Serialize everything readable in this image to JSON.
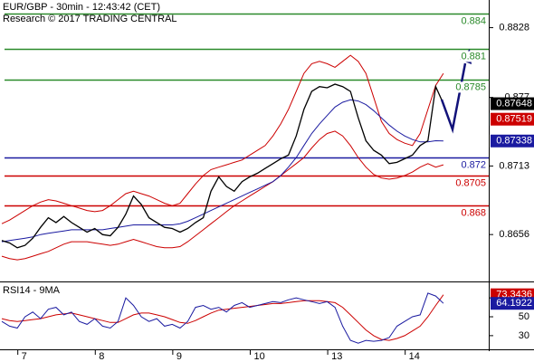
{
  "chart_data": [
    {
      "type": "line",
      "title": "EUR/GBP - 30min - 12:43:42 (CET)",
      "subtitle": "Research © 2017 TRADING CENTRAL",
      "categories": [
        null,
        null,
        null,
        "7",
        null,
        null,
        null,
        null,
        null,
        null,
        null,
        null,
        null,
        "8",
        null,
        null,
        null,
        null,
        null,
        null,
        null,
        null,
        null,
        "9",
        null,
        null,
        null,
        null,
        null,
        null,
        null,
        null,
        null,
        "10",
        null,
        null,
        null,
        null,
        null,
        null,
        null,
        null,
        null,
        "13",
        null,
        null,
        null,
        null,
        null,
        null,
        null,
        null,
        null,
        "14",
        null,
        null,
        null,
        null
      ],
      "series": [
        {
          "color": "#cc0000",
          "values": [
            0.8665,
            0.8668,
            0.8672,
            0.8676,
            0.868,
            0.8683,
            0.8685,
            0.8684,
            0.8682,
            0.868,
            0.8678,
            0.8676,
            0.8675,
            0.8676,
            0.868,
            0.8685,
            0.869,
            0.8692,
            0.869,
            0.8688,
            0.8685,
            0.8682,
            0.868,
            0.8682,
            0.869,
            0.8698,
            0.8705,
            0.871,
            0.8712,
            0.8714,
            0.8716,
            0.8718,
            0.8722,
            0.8726,
            0.873,
            0.8738,
            0.8748,
            0.876,
            0.8775,
            0.879,
            0.8798,
            0.88,
            0.8798,
            0.8795,
            0.88,
            0.8805,
            0.88,
            0.879,
            0.877,
            0.875,
            0.874,
            0.8735,
            0.8732,
            0.873,
            0.874,
            0.876,
            0.878,
            0.879
          ]
        },
        {
          "color": "#cc0000",
          "values": [
            0.8638,
            0.8636,
            0.8635,
            0.8636,
            0.8638,
            0.864,
            0.8642,
            0.8645,
            0.8648,
            0.865,
            0.865,
            0.865,
            0.8649,
            0.8648,
            0.8647,
            0.8648,
            0.865,
            0.8652,
            0.865,
            0.8648,
            0.8646,
            0.8645,
            0.8645,
            0.8646,
            0.865,
            0.8655,
            0.866,
            0.8665,
            0.867,
            0.8675,
            0.868,
            0.8684,
            0.8688,
            0.8692,
            0.8696,
            0.87,
            0.8705,
            0.871,
            0.8715,
            0.872,
            0.8728,
            0.8735,
            0.874,
            0.8742,
            0.8738,
            0.873,
            0.872,
            0.8712,
            0.8706,
            0.8703,
            0.8702,
            0.8703,
            0.8705,
            0.8708,
            0.8712,
            0.8715,
            0.8712,
            0.8714
          ]
        },
        {
          "color": "#1a1aa0",
          "last_tag": true,
          "values": [
            0.865,
            0.8651,
            0.8652,
            0.8653,
            0.8654,
            0.8656,
            0.8657,
            0.8658,
            0.8659,
            0.866,
            0.866,
            0.866,
            0.866,
            0.866,
            0.8661,
            0.8662,
            0.8663,
            0.8664,
            0.8664,
            0.8664,
            0.8664,
            0.8664,
            0.8664,
            0.8665,
            0.8667,
            0.867,
            0.8673,
            0.8676,
            0.8679,
            0.8682,
            0.8685,
            0.8688,
            0.8691,
            0.8694,
            0.8697,
            0.87,
            0.8705,
            0.8712,
            0.872,
            0.873,
            0.874,
            0.8748,
            0.8755,
            0.8762,
            0.8766,
            0.8768,
            0.8767,
            0.8764,
            0.8759,
            0.8753,
            0.8747,
            0.8742,
            0.8738,
            0.8735,
            0.8733,
            0.8733,
            0.8734,
            0.87338
          ]
        },
        {
          "color": "#000000",
          "last_tag": true,
          "values": [
            0.8651,
            0.8649,
            0.8645,
            0.8647,
            0.8653,
            0.8662,
            0.867,
            0.8666,
            0.8671,
            0.8666,
            0.8662,
            0.8658,
            0.8661,
            0.8656,
            0.8655,
            0.8662,
            0.8673,
            0.8688,
            0.8681,
            0.867,
            0.8666,
            0.8662,
            0.8661,
            0.8658,
            0.8661,
            0.8666,
            0.867,
            0.8692,
            0.8704,
            0.8696,
            0.8692,
            0.87,
            0.8704,
            0.8707,
            0.8711,
            0.8715,
            0.8719,
            0.8722,
            0.8738,
            0.876,
            0.8775,
            0.8779,
            0.8778,
            0.8781,
            0.8779,
            0.8775,
            0.8753,
            0.8734,
            0.8726,
            0.8722,
            0.8715,
            0.8716,
            0.8719,
            0.8722,
            0.873,
            0.8734,
            0.8779,
            0.87648
          ]
        }
      ],
      "levels": [
        {
          "value": 0.884,
          "color": "#2a8a2a"
        },
        {
          "value": 0.881,
          "color": "#2a8a2a"
        },
        {
          "value": 0.8785,
          "color": "#2a8a2a"
        },
        {
          "value": 0.872,
          "color": "#1a1aa0"
        },
        {
          "value": 0.8705,
          "color": "#cc0000"
        },
        {
          "value": 0.868,
          "color": "#cc0000"
        }
      ],
      "price_marker": {
        "value": 0.87519,
        "color": "#cc0000"
      },
      "ylim": [
        0.8617,
        0.8851
      ],
      "yticks": [
        0.8828,
        0.877,
        0.8713,
        0.8656
      ]
    },
    {
      "type": "line",
      "title": "RSI14 - 9MA",
      "series": [
        {
          "color": "#cc0000",
          "last_tag": true,
          "values": [
            48,
            46,
            45,
            46,
            47,
            48,
            50,
            52,
            53,
            54,
            52,
            50,
            48,
            46,
            44,
            44,
            48,
            52,
            54,
            54,
            52,
            50,
            47,
            44,
            43,
            46,
            50,
            54,
            57,
            58,
            59,
            60,
            61,
            62,
            63,
            64,
            64,
            65,
            66,
            67,
            67,
            67,
            66,
            65,
            60,
            52,
            44,
            36,
            30,
            26,
            25,
            27,
            30,
            35,
            40,
            50,
            62,
            73.3436
          ]
        },
        {
          "color": "#1a1aa0",
          "last_tag": true,
          "values": [
            45,
            40,
            38,
            50,
            55,
            48,
            58,
            60,
            52,
            55,
            45,
            42,
            48,
            40,
            38,
            45,
            70,
            62,
            50,
            45,
            48,
            40,
            42,
            38,
            45,
            60,
            62,
            58,
            60,
            55,
            62,
            65,
            60,
            62,
            64,
            66,
            65,
            68,
            70,
            68,
            66,
            64,
            66,
            60,
            40,
            25,
            22,
            25,
            24,
            25,
            28,
            40,
            45,
            50,
            52,
            75,
            72,
            64.1922
          ]
        }
      ],
      "ylim": [
        15.5,
        85.5
      ],
      "yticks": [
        70,
        50,
        30
      ]
    }
  ]
}
